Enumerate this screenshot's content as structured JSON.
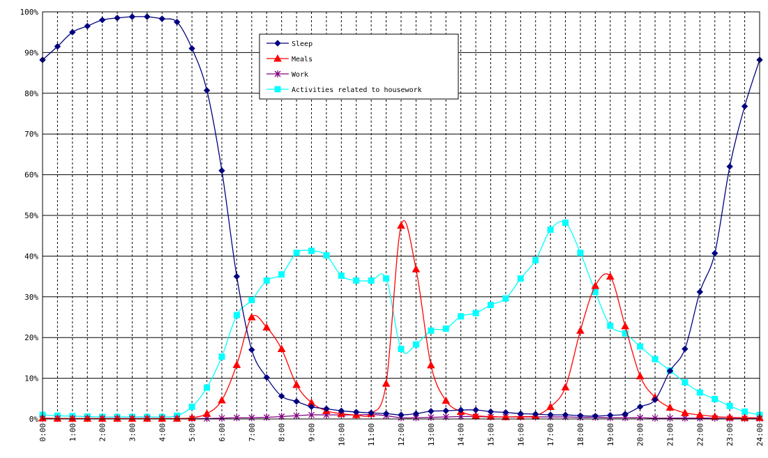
{
  "chart_data": {
    "type": "line",
    "title": "",
    "xlabel": "",
    "ylabel": "",
    "ylim": [
      0,
      100
    ],
    "y_ticks": [
      "0%",
      "10%",
      "20%",
      "30%",
      "40%",
      "50%",
      "60%",
      "70%",
      "80%",
      "90%",
      "100%"
    ],
    "x_ticks": [
      "0:00",
      "1:00",
      "2:00",
      "3:00",
      "4:00",
      "5:00",
      "6:00",
      "7:00",
      "8:00",
      "9:00",
      "10:00",
      "11:00",
      "12:00",
      "13:00",
      "14:00",
      "15:00",
      "16:00",
      "17:00",
      "18:00",
      "19:00",
      "20:00",
      "21:00",
      "22:00",
      "23:00",
      "24:00"
    ],
    "x": [
      0,
      0.5,
      1,
      1.5,
      2,
      2.5,
      3,
      3.5,
      4,
      4.5,
      5,
      5.5,
      6,
      6.5,
      7,
      7.5,
      8,
      8.5,
      9,
      9.5,
      10,
      10.5,
      11,
      11.5,
      12,
      12.5,
      13,
      13.5,
      14,
      14.5,
      15,
      15.5,
      16,
      16.5,
      17,
      17.5,
      18,
      18.5,
      19,
      19.5,
      20,
      20.5,
      21,
      21.5,
      22,
      22.5,
      23,
      23.5,
      24
    ],
    "grid": {
      "horizontal": "solid",
      "vertical": "dashed"
    },
    "legend_position": "top-center",
    "series": [
      {
        "name": "Sleep",
        "color": "#000080",
        "marker": "diamond",
        "values": [
          88.2,
          91.5,
          95.0,
          96.5,
          98.0,
          98.5,
          98.8,
          98.8,
          98.3,
          97.5,
          91.0,
          80.7,
          61.0,
          35.0,
          17.0,
          10.2,
          5.6,
          4.3,
          3.0,
          2.5,
          2.0,
          1.7,
          1.5,
          1.3,
          1.0,
          1.3,
          1.9,
          2.0,
          2.2,
          2.2,
          1.8,
          1.6,
          1.3,
          1.2,
          1.0,
          1.0,
          0.8,
          0.7,
          0.9,
          1.2,
          3.0,
          4.7,
          11.8,
          17.2,
          31.2,
          40.7,
          62.0,
          76.8,
          88.2
        ]
      },
      {
        "name": "Meals",
        "color": "#ff0000",
        "marker": "triangle",
        "values": [
          0.2,
          0.1,
          0.1,
          0.1,
          0.1,
          0.1,
          0.1,
          0.1,
          0.1,
          0.1,
          0.3,
          1.3,
          4.6,
          13.3,
          25.0,
          22.5,
          17.2,
          8.4,
          4.0,
          2.0,
          1.3,
          1.0,
          1.3,
          8.7,
          47.5,
          36.8,
          13.2,
          4.5,
          1.8,
          0.8,
          0.6,
          0.5,
          0.6,
          0.8,
          3.0,
          7.8,
          21.7,
          32.7,
          35.0,
          22.8,
          10.5,
          5.3,
          2.8,
          1.5,
          1.0,
          0.6,
          0.4,
          0.3,
          0.3
        ]
      },
      {
        "name": "Work",
        "color": "#800080",
        "marker": "star",
        "values": [
          0.1,
          0.1,
          0.1,
          0.1,
          0.1,
          0.1,
          0.1,
          0.1,
          0.1,
          0.1,
          0.1,
          0.1,
          0.2,
          0.3,
          0.3,
          0.4,
          0.6,
          0.8,
          1.0,
          1.0,
          1.0,
          1.0,
          1.1,
          0.8,
          0.3,
          0.3,
          0.4,
          0.5,
          0.6,
          0.6,
          0.5,
          0.5,
          0.5,
          0.5,
          0.5,
          0.5,
          0.4,
          0.4,
          0.3,
          0.3,
          0.3,
          0.2,
          0.2,
          0.2,
          0.2,
          0.2,
          0.1,
          0.1,
          0.1
        ]
      },
      {
        "name": "Activities related to housework",
        "color": "#00ffff",
        "marker": "square",
        "values": [
          1.0,
          0.8,
          0.7,
          0.6,
          0.5,
          0.5,
          0.5,
          0.5,
          0.5,
          0.8,
          3.0,
          7.7,
          15.3,
          25.5,
          29.2,
          34.0,
          35.5,
          40.8,
          41.3,
          40.2,
          35.2,
          34.0,
          34.0,
          34.5,
          17.2,
          18.3,
          21.7,
          22.2,
          25.2,
          26.0,
          28.0,
          29.6,
          34.5,
          39.0,
          46.5,
          48.2,
          40.8,
          31.2,
          22.9,
          21.0,
          17.8,
          14.7,
          11.9,
          9.0,
          6.5,
          4.9,
          3.2,
          1.8,
          1.0
        ]
      }
    ]
  }
}
